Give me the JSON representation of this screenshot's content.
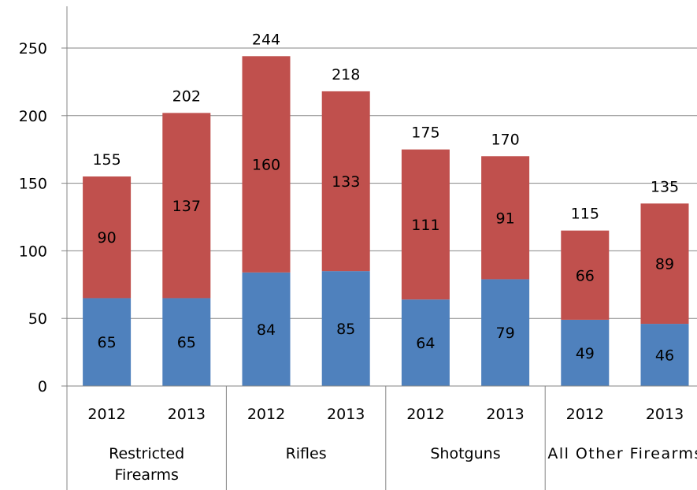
{
  "chart_data": {
    "type": "bar",
    "stacked": true,
    "groups": [
      "Restricted Firearms",
      "Rifles",
      "Shotguns",
      "All Other Firearms"
    ],
    "categories": [
      "2012",
      "2013",
      "2012",
      "2013",
      "2012",
      "2013",
      "2012",
      "2013"
    ],
    "series": [
      {
        "values": [
          65,
          65,
          84,
          85,
          64,
          79,
          49,
          46
        ],
        "color": "#4f81bd"
      },
      {
        "values": [
          90,
          137,
          160,
          133,
          111,
          91,
          66,
          89
        ],
        "color": "#c0504d"
      }
    ],
    "totals": [
      155,
      202,
      244,
      218,
      175,
      170,
      115,
      135
    ],
    "yticks": [
      "0",
      "50",
      "100",
      "150",
      "200",
      "250"
    ],
    "ylim": [
      0,
      275
    ],
    "grid": true,
    "legend": "none"
  }
}
